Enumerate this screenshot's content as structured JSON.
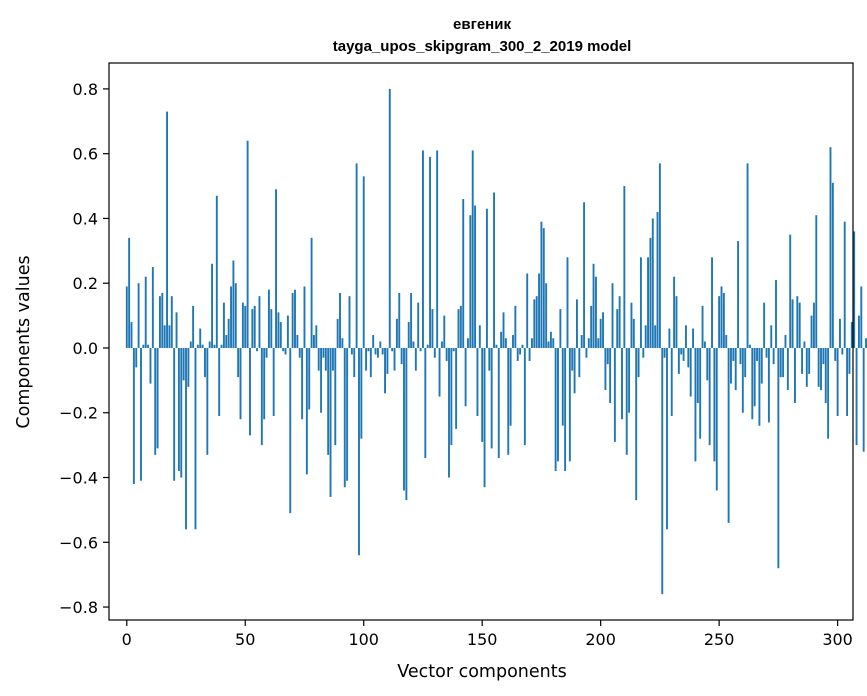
{
  "chart_data": {
    "type": "bar",
    "title_line1": "евгеник",
    "title_line2": "tayga_upos_skipgram_300_2_2019 model",
    "xlabel": "Vector components",
    "ylabel": "Components values",
    "xlim": [
      -7.5,
      306.5
    ],
    "ylim": [
      -0.84,
      0.88
    ],
    "xticks": [
      0,
      50,
      100,
      150,
      200,
      250,
      300
    ],
    "xtick_labels": [
      "0",
      "50",
      "100",
      "150",
      "200",
      "250",
      "300"
    ],
    "yticks": [
      -0.8,
      -0.6,
      -0.4,
      -0.2,
      0.0,
      0.2,
      0.4,
      0.6,
      0.8
    ],
    "ytick_labels": [
      "−0.8",
      "−0.6",
      "−0.4",
      "−0.2",
      "0.0",
      "0.2",
      "0.4",
      "0.6",
      "0.8"
    ],
    "bar_color": "#1f77b4",
    "grid": false,
    "values": [
      0.19,
      0.34,
      0.08,
      -0.42,
      -0.06,
      0.2,
      -0.41,
      0.01,
      0.22,
      0.01,
      -0.11,
      0.25,
      -0.33,
      -0.31,
      0.16,
      0.17,
      0.07,
      0.73,
      0.07,
      0.16,
      -0.41,
      0.11,
      -0.38,
      -0.4,
      -0.1,
      -0.56,
      -0.12,
      0.02,
      0.13,
      -0.56,
      0.01,
      0.06,
      0.01,
      -0.09,
      -0.33,
      0.02,
      0.26,
      0.01,
      0.47,
      -0.21,
      0.01,
      0.14,
      0.04,
      0.09,
      0.19,
      0.27,
      0.2,
      -0.09,
      -0.22,
      0.14,
      0.13,
      0.64,
      -0.27,
      0.12,
      0.13,
      -0.01,
      0.16,
      -0.3,
      -0.22,
      -0.03,
      0.18,
      0.12,
      -0.21,
      0.49,
      0.11,
      0.08,
      -0.01,
      -0.02,
      0.1,
      -0.51,
      0.17,
      0.18,
      0.04,
      -0.03,
      -0.22,
      0.19,
      -0.39,
      -0.19,
      0.34,
      0.04,
      0.07,
      -0.07,
      -0.2,
      -0.03,
      -0.07,
      -0.33,
      -0.46,
      -0.07,
      -0.3,
      0.09,
      0.17,
      0.03,
      -0.43,
      -0.41,
      0.16,
      -0.02,
      -0.09,
      0.57,
      -0.64,
      -0.28,
      0.53,
      -0.07,
      -0.01,
      -0.09,
      0.04,
      -0.02,
      -0.03,
      0.02,
      -0.02,
      -0.14,
      -0.08,
      0.8,
      -0.01,
      -0.07,
      0.09,
      0.17,
      -0.05,
      -0.44,
      -0.47,
      0.08,
      0.17,
      0.02,
      -0.07,
      0.14,
      -0.01,
      0.61,
      -0.34,
      0.01,
      0.59,
      0.12,
      -0.03,
      0.61,
      -0.15,
      0.02,
      0.1,
      -0.04,
      -0.4,
      -0.3,
      -0.01,
      -0.25,
      0.12,
      0.13,
      0.46,
      -0.18,
      0.03,
      0.41,
      0.61,
      0.44,
      -0.21,
      0.07,
      -0.29,
      -0.43,
      0.43,
      -0.07,
      -0.31,
      0.48,
      0.01,
      -0.34,
      0.05,
      0.11,
      0.03,
      -0.33,
      -0.24,
      0.04,
      0.13,
      -0.04,
      -0.02,
      0.01,
      -0.3,
      0.23,
      -0.04,
      0.03,
      0.15,
      0.16,
      0.23,
      0.39,
      0.37,
      0.2,
      0.02,
      0.05,
      0.03,
      -0.38,
      -0.35,
      0.12,
      -0.24,
      -0.38,
      0.28,
      -0.35,
      -0.07,
      -0.14,
      0.15,
      -0.09,
      0.04,
      0.45,
      -0.03,
      0.03,
      0.13,
      0.26,
      0.22,
      0.03,
      0.09,
      0.11,
      -0.13,
      -0.05,
      -0.17,
      0.2,
      -0.29,
      0.12,
      0.16,
      -0.22,
      0.5,
      -0.33,
      -0.2,
      0.14,
      0.09,
      -0.47,
      -0.09,
      0.28,
      -0.03,
      0.07,
      0.28,
      0.34,
      0.4,
      0.07,
      0.42,
      0.57,
      -0.76,
      -0.03,
      -0.56,
      0.06,
      -0.21,
      0.22,
      0.16,
      -0.08,
      -0.02,
      -0.04,
      0.07,
      -0.06,
      -0.15,
      0.06,
      -0.35,
      -0.17,
      -0.28,
      0.13,
      0.02,
      -0.1,
      -0.3,
      0.28,
      -0.35,
      -0.44,
      0.16,
      0.19,
      0.17,
      0.04,
      -0.54,
      -0.11,
      -0.04,
      -0.13,
      0.33,
      -0.05,
      -0.2,
      -0.09,
      0.57,
      0.01,
      -0.22,
      -0.18,
      -0.04,
      -0.24,
      -0.11,
      0.14,
      -0.03,
      -0.23,
      0.07,
      -0.05,
      0.21,
      -0.68,
      -0.09,
      -0.09,
      0.04,
      -0.13,
      0.35,
      0.15,
      -0.17,
      0.16,
      0.14,
      -0.08,
      0.02,
      -0.12,
      -0.08,
      0.1,
      0.14,
      0.41,
      -0.12,
      -0.13,
      -0.05,
      -0.17,
      -0.28,
      0.62,
      0.51,
      -0.04,
      -0.21,
      0.09,
      -0.02,
      0.39,
      -0.21,
      -0.08,
      0.08,
      0.36,
      -0.3,
      0.1,
      0.19,
      -0.32,
      0.03,
      0.06,
      0.04
    ]
  }
}
